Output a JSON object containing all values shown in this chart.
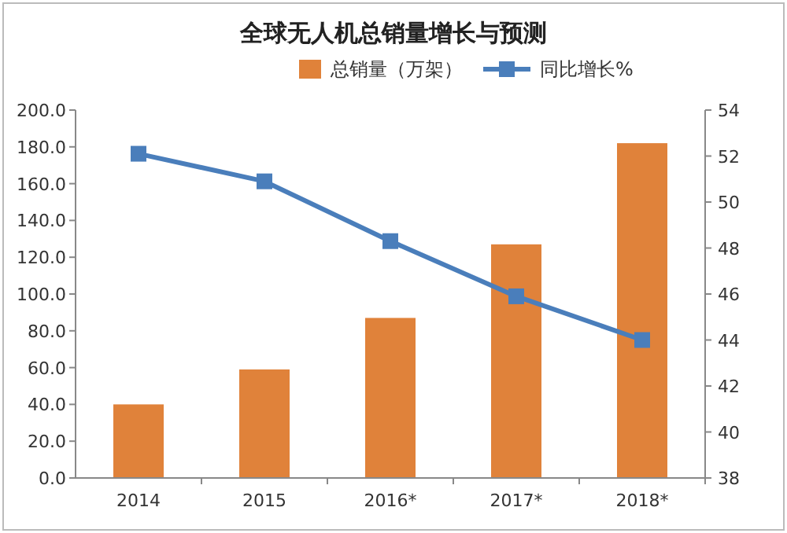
{
  "chart_data": {
    "type": "bar",
    "title": "全球无人机总销量增长与预测",
    "categories": [
      "2014",
      "2015",
      "2016*",
      "2017*",
      "2018*"
    ],
    "series": [
      {
        "name": "总销量（万架）",
        "color": "#e0823a",
        "values": [
          40,
          59,
          87,
          127,
          182
        ]
      },
      {
        "name": "同比增长%",
        "type": "line",
        "axis": "y2",
        "color": "#4a7ebb",
        "values": [
          52.1,
          50.9,
          48.3,
          45.9,
          44.0
        ]
      }
    ],
    "ylim": [
      0,
      200
    ],
    "yticks": [
      {
        "value": 0,
        "label": "0.0"
      },
      {
        "value": 20,
        "label": "20.0"
      },
      {
        "value": 40,
        "label": "40.0"
      },
      {
        "value": 60,
        "label": "60.0"
      },
      {
        "value": 80,
        "label": "80.0"
      },
      {
        "value": 100,
        "label": "100.0"
      },
      {
        "value": 120,
        "label": "120.0"
      },
      {
        "value": 140,
        "label": "140.0"
      },
      {
        "value": 160,
        "label": "160.0"
      },
      {
        "value": 180,
        "label": "180.0"
      },
      {
        "value": 200,
        "label": "200.0"
      }
    ],
    "y2lim": [
      38,
      54
    ],
    "y2ticks": [
      38,
      40,
      42,
      44,
      46,
      48,
      50,
      52,
      54
    ],
    "legend": "top",
    "marker": "square",
    "grid": false
  }
}
